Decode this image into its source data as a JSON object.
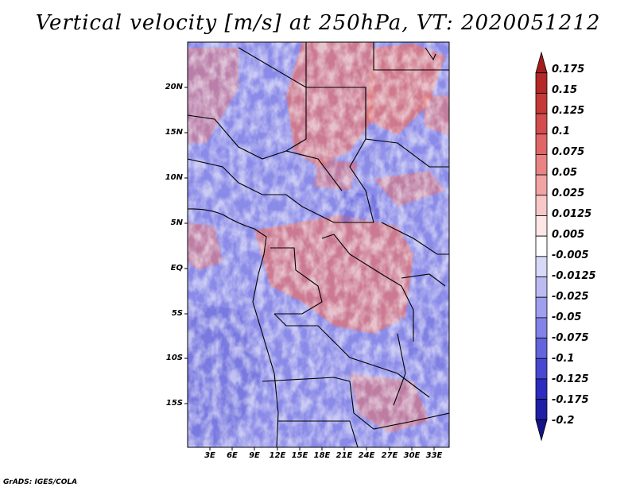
{
  "title": "Vertical velocity [m/s] at 250hPa, VT: 2020051212",
  "footer": "GrADS: IGES/COLA",
  "map": {
    "lat_labels": [
      "20N",
      "15N",
      "10N",
      "5N",
      "EQ",
      "5S",
      "10S",
      "15S"
    ],
    "lon_labels": [
      "3E",
      "6E",
      "9E",
      "12E",
      "15E",
      "18E",
      "21E",
      "24E",
      "27E",
      "30E",
      "33E"
    ]
  },
  "colorbar": {
    "labels": [
      "0.175",
      "0.15",
      "0.125",
      "0.1",
      "0.075",
      "0.05",
      "0.025",
      "0.0125",
      "0.005",
      "-0.005",
      "-0.0125",
      "-0.025",
      "-0.05",
      "-0.075",
      "-0.1",
      "-0.125",
      "-0.175",
      "-0.2"
    ],
    "colors": [
      "#a51c1c",
      "#b42828",
      "#c43838",
      "#d44c4c",
      "#e06666",
      "#ea8484",
      "#f2a4a4",
      "#f8c8c8",
      "#fde6e6",
      "#ffffff",
      "#d8d8f8",
      "#bbbbf2",
      "#9f9ff0",
      "#8282e8",
      "#6464de",
      "#4848d2",
      "#2c2cc0",
      "#1e1ea6",
      "#14148a"
    ]
  },
  "colors": {
    "red_region": "#e07474",
    "blue_region": "#8a8ae8",
    "border": "#000000"
  }
}
